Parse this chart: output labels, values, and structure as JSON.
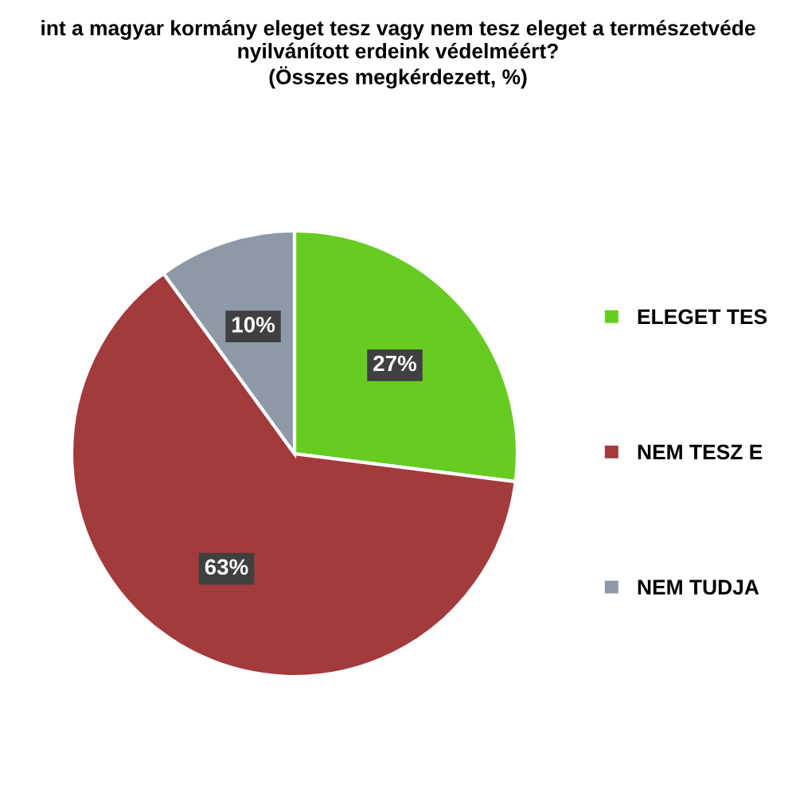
{
  "chart_data": {
    "type": "pie",
    "title": "int a magyar kormány eleget tesz vagy nem tesz eleget a természetvéde\nnyilvánított erdeink védelméért?\n(Összes megkérdezett, %)",
    "categories": [
      "ELEGET TES",
      "NEM TESZ E",
      "NEM TUDJA"
    ],
    "values": [
      27,
      63,
      10
    ],
    "colors": [
      "#66cc22",
      "#a33a3c",
      "#8e99a8"
    ],
    "value_labels": [
      "27%",
      "63%",
      "10%"
    ],
    "legend": "right"
  }
}
